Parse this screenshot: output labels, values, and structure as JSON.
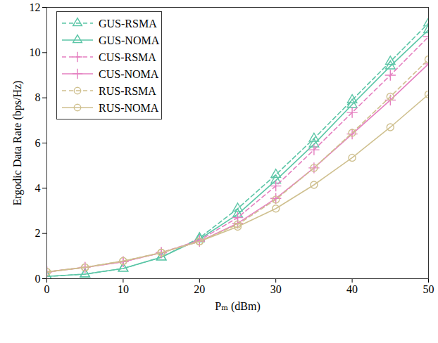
{
  "chart_data": {
    "type": "line",
    "x_label": "Pₘ (dBm)",
    "y_label": "Ergodic Data Rate (bps/Hz)",
    "x": [
      0,
      5,
      10,
      15,
      20,
      25,
      30,
      35,
      40,
      45,
      50
    ],
    "xlim": [
      0,
      50
    ],
    "xticks": [
      0,
      10,
      20,
      30,
      40,
      50
    ],
    "ylim": [
      0,
      12
    ],
    "yticks": [
      0,
      2,
      4,
      6,
      8,
      10,
      12
    ],
    "grid": false,
    "legend": "top-left",
    "series": [
      {
        "name": "GUS-RSMA",
        "color": "#5cc6a7",
        "marker": "triangle",
        "line_style": "dashed",
        "values": [
          0.1,
          0.2,
          0.45,
          0.95,
          1.8,
          3.1,
          4.6,
          6.2,
          7.9,
          9.6,
          11.3
        ]
      },
      {
        "name": "GUS-NOMA",
        "color": "#5cc6a7",
        "marker": "triangle",
        "line_style": "solid",
        "values": [
          0.1,
          0.2,
          0.45,
          0.95,
          1.75,
          2.85,
          4.35,
          5.95,
          7.7,
          9.4,
          11.0
        ]
      },
      {
        "name": "CUS-RSMA",
        "color": "#e57fc0",
        "marker": "plus",
        "line_style": "dashed",
        "values": [
          0.3,
          0.5,
          0.75,
          1.15,
          1.7,
          2.7,
          4.1,
          5.7,
          7.35,
          9.0,
          10.7
        ]
      },
      {
        "name": "CUS-NOMA",
        "color": "#e57fc0",
        "marker": "plus",
        "line_style": "solid",
        "values": [
          0.3,
          0.5,
          0.75,
          1.15,
          1.65,
          2.45,
          3.55,
          4.9,
          6.4,
          7.9,
          9.5
        ]
      },
      {
        "name": "RUS-RSMA",
        "color": "#cfc08f",
        "marker": "circle",
        "line_style": "dashed",
        "values": [
          0.3,
          0.5,
          0.78,
          1.15,
          1.65,
          2.4,
          3.5,
          4.9,
          6.45,
          8.05,
          9.7
        ]
      },
      {
        "name": "RUS-NOMA",
        "color": "#cfc08f",
        "marker": "circle",
        "line_style": "solid",
        "values": [
          0.3,
          0.5,
          0.78,
          1.15,
          1.65,
          2.3,
          3.1,
          4.15,
          5.35,
          6.7,
          8.15
        ]
      }
    ]
  }
}
